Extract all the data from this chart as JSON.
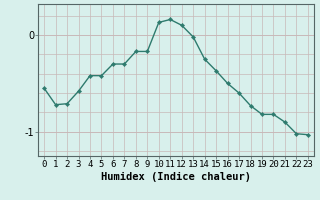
{
  "xlabel": "Humidex (Indice chaleur)",
  "x": [
    0,
    1,
    2,
    3,
    4,
    5,
    6,
    7,
    8,
    9,
    10,
    11,
    12,
    13,
    14,
    15,
    16,
    17,
    18,
    19,
    20,
    21,
    22,
    23
  ],
  "y": [
    -0.55,
    -0.72,
    -0.71,
    -0.58,
    -0.42,
    -0.42,
    -0.3,
    -0.3,
    -0.17,
    -0.17,
    0.13,
    0.16,
    0.1,
    -0.02,
    -0.25,
    -0.37,
    -0.5,
    -0.6,
    -0.73,
    -0.82,
    -0.82,
    -0.9,
    -1.02,
    -1.03
  ],
  "line_color": "#2e7b6e",
  "marker_color": "#2e7b6e",
  "bg_color": "#d8f0ec",
  "grid_color_v": "#c8b8b8",
  "grid_color_h": "#c8b8b8",
  "yticks": [
    0,
    -1
  ],
  "ylim": [
    -1.25,
    0.32
  ],
  "xlim": [
    -0.5,
    23.5
  ],
  "xtick_labels": [
    "0",
    "1",
    "2",
    "3",
    "4",
    "5",
    "6",
    "7",
    "8",
    "9",
    "10",
    "11",
    "12",
    "13",
    "14",
    "15",
    "16",
    "17",
    "18",
    "19",
    "20",
    "21",
    "22",
    "23"
  ],
  "xlabel_fontsize": 7.5,
  "tick_fontsize": 6.5
}
